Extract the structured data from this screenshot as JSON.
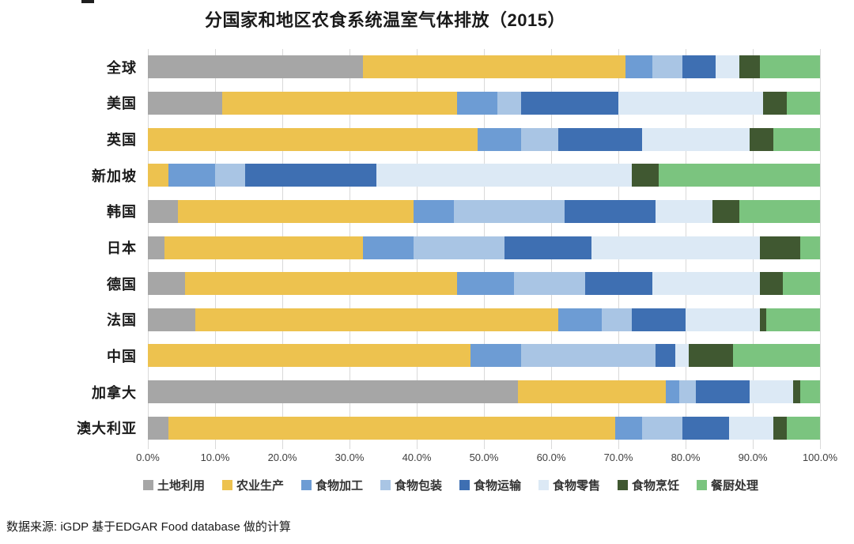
{
  "page": {
    "source_note": "数据来源: iGDP 基于EDGAR Food database 做的计算"
  },
  "chart_data": {
    "type": "bar",
    "orientation": "horizontal_stacked",
    "title": "分国家和地区农食系统温室气体排放（2015）",
    "categories": [
      "全球",
      "美国",
      "英国",
      "新加坡",
      "韩国",
      "日本",
      "德国",
      "法国",
      "中国",
      "加拿大",
      "澳大利亚"
    ],
    "series": [
      {
        "name": "土地利用",
        "color": "#A6A6A6",
        "values": [
          32,
          11,
          0,
          0,
          4.5,
          2.5,
          5.5,
          7,
          0,
          55,
          3
        ]
      },
      {
        "name": "农业生产",
        "color": "#EDC24F",
        "values": [
          39,
          35,
          49,
          3,
          35,
          29.5,
          40.5,
          54,
          48,
          22,
          66.5
        ]
      },
      {
        "name": "食物加工",
        "color": "#6D9CD4",
        "values": [
          4,
          6,
          6.5,
          7,
          6,
          7.5,
          8.5,
          6.5,
          7.5,
          2,
          4
        ]
      },
      {
        "name": "食物包装",
        "color": "#A9C5E4",
        "values": [
          4.5,
          3.5,
          5.5,
          4.5,
          16.5,
          13.5,
          10.5,
          4.5,
          20,
          2.5,
          6
        ]
      },
      {
        "name": "食物运输",
        "color": "#3E6FB2",
        "values": [
          5,
          14.5,
          12.5,
          19.5,
          13.5,
          13,
          10,
          8,
          3,
          8,
          7
        ]
      },
      {
        "name": "食物零售",
        "color": "#DCE9F5",
        "values": [
          3.5,
          21.5,
          16,
          38,
          8.5,
          25,
          16,
          11,
          2,
          6.5,
          6.5
        ]
      },
      {
        "name": "食物烹饪",
        "color": "#405831",
        "values": [
          3,
          3.5,
          3.5,
          4,
          4,
          6,
          3.5,
          1,
          6.5,
          1,
          2
        ]
      },
      {
        "name": "餐厨处理",
        "color": "#7BC47F",
        "values": [
          9,
          5,
          7,
          24,
          12,
          3,
          5.5,
          8,
          13,
          3,
          5
        ]
      }
    ],
    "x_ticks": [
      "0.0%",
      "10.0%",
      "20.0%",
      "30.0%",
      "40.0%",
      "50.0%",
      "60.0%",
      "70.0%",
      "80.0%",
      "90.0%",
      "100.0%"
    ],
    "xlim": [
      0,
      100
    ],
    "grid": true,
    "legend_position": "bottom"
  }
}
